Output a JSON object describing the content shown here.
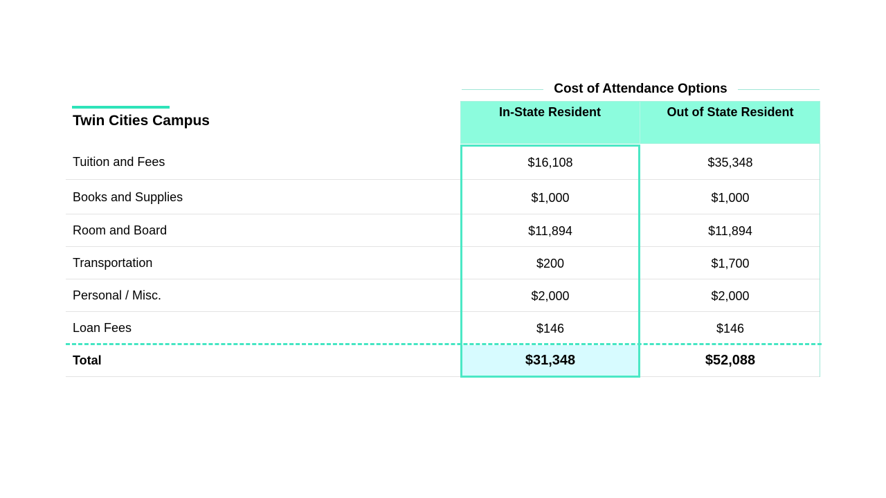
{
  "group_header": "Cost of Attendance Options",
  "campus_title": "Twin Cities Campus",
  "columns": {
    "in_state": "In-State Resident",
    "out_state": "Out of State Resident"
  },
  "rows": [
    {
      "label": "Tuition and Fees",
      "in_state": "$16,108",
      "out_state": "$35,348"
    },
    {
      "label": "Books and Supplies",
      "in_state": "$1,000",
      "out_state": "$1,000"
    },
    {
      "label": "Room and Board",
      "in_state": "$11,894",
      "out_state": "$11,894"
    },
    {
      "label": "Transportation",
      "in_state": "$200",
      "out_state": "$1,700"
    },
    {
      "label": "Personal / Misc.",
      "in_state": "$2,000",
      "out_state": "$2,000"
    },
    {
      "label": "Loan Fees",
      "in_state": "$146",
      "out_state": "$146"
    }
  ],
  "total": {
    "label": "Total",
    "in_state": "$31,348",
    "out_state": "$52,088"
  },
  "colors": {
    "accent": "#2ee3b9",
    "header_fill": "#8cfcdd",
    "total_fill": "#d7fbff",
    "highlight_border": "#4be8c5"
  }
}
